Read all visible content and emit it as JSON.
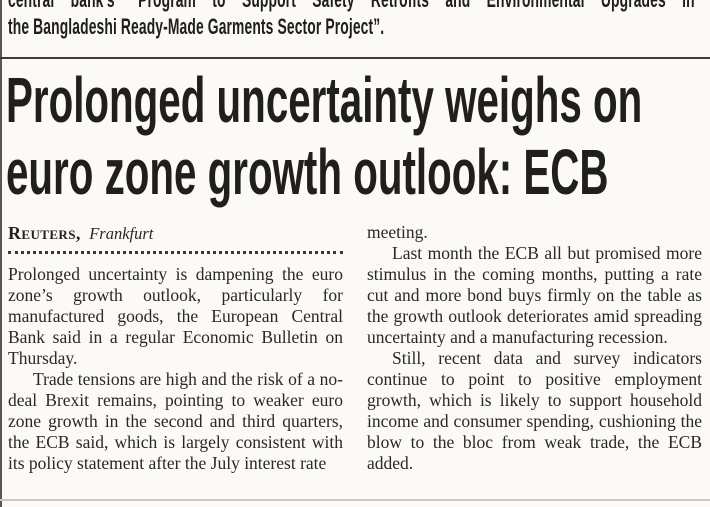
{
  "top_snippet": {
    "line1": "central bank's “Program to Support Safety Retrofits and Environmental Upgrades in",
    "line2": "the Bangladeshi Ready-Made Garments Sector Project”."
  },
  "headline": {
    "line1": "Prolonged uncertainty weighs on",
    "line2": "euro zone growth outlook: ECB"
  },
  "byline": {
    "agency": "Reuters,",
    "location": "Frankfurt"
  },
  "article": {
    "left_column": {
      "para1": "Prolonged uncertainty is dampening the euro zone’s growth outlook, particularly for manufactured goods, the European Central Bank said in a regular Economic Bulletin on Thursday.",
      "para2": "Trade tensions are high and the risk of a no-deal Brexit remains, pointing to weaker euro zone growth in the second and third quarters, the ECB said, which is largely consistent with its policy statement after the July interest rate"
    },
    "right_column": {
      "para2_continued": "meeting.",
      "para3": "Last month the ECB all but promised more stimulus in the coming months, putting a rate cut and more bond buys firmly on the table as the growth outlook deteriorates amid spreading uncertainty and a manufacturing recession.",
      "para4": "Still, recent data and survey indicators continue to point to positive employment growth, which is likely to support household income and consumer spending, cushioning the blow to the bloc from weak trade, the ECB added."
    }
  },
  "colors": {
    "paper": "#fbfaf7",
    "ink": "#26241f",
    "headline_ink": "#201f1d",
    "divider": "#3d3b38",
    "bottom_rule": "#ccc9c1",
    "page_edge": "#5a5750"
  }
}
